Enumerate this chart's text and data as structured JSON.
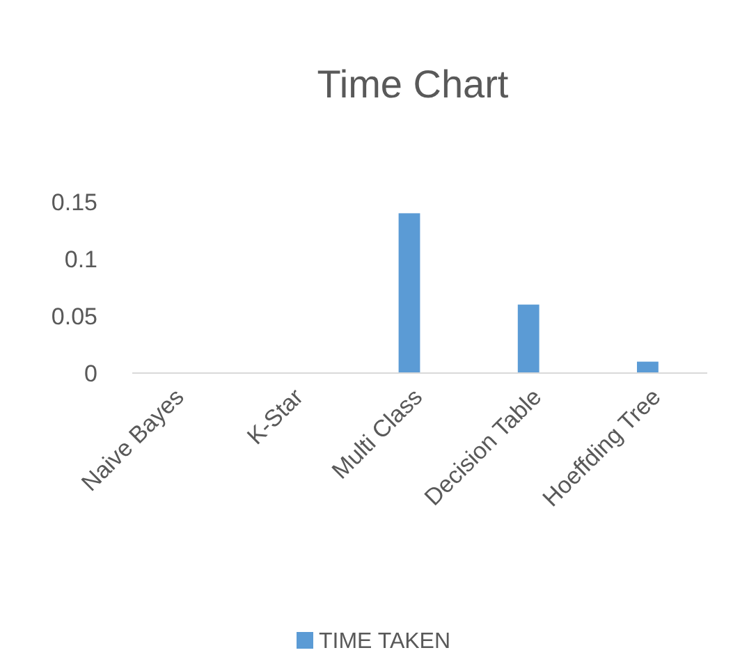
{
  "chart_data": {
    "type": "bar",
    "title": "Time Chart",
    "categories": [
      "Naive Bayes",
      "K-Star",
      "Multi Class",
      "Decision Table",
      "Hoeffding Tree"
    ],
    "series": [
      {
        "name": "TIME TAKEN",
        "color": "#5b9bd5",
        "values": [
          0,
          0,
          0.14,
          0.06,
          0.01
        ]
      }
    ],
    "ylim": [
      0,
      0.15
    ],
    "yticks": [
      0,
      0.05,
      0.1,
      0.15
    ],
    "grid": false,
    "legend": "bottom"
  }
}
